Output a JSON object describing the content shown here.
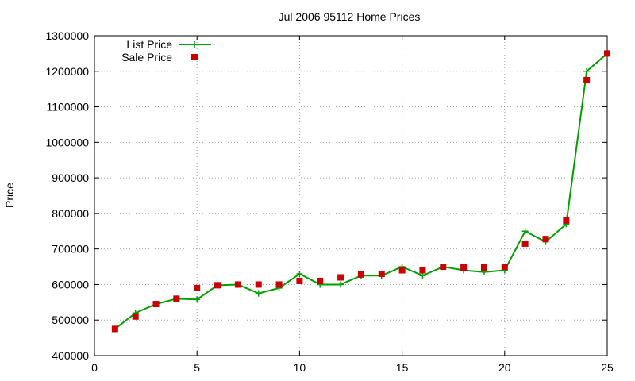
{
  "chart_data": {
    "type": "line",
    "title": "Jul 2006 95112 Home Prices",
    "xlabel": "",
    "ylabel": "Price",
    "xlim": [
      0,
      25
    ],
    "ylim": [
      400000,
      1300000
    ],
    "xticks": [
      0,
      5,
      10,
      15,
      20,
      25
    ],
    "yticks": [
      400000,
      500000,
      600000,
      700000,
      800000,
      900000,
      1000000,
      1100000,
      1200000,
      1300000
    ],
    "grid": true,
    "legend_position": "top-left",
    "series": [
      {
        "name": "List Price",
        "style": "line-with-plus-markers",
        "color": "#00a000",
        "x": [
          1,
          2,
          3,
          4,
          5,
          6,
          7,
          8,
          9,
          10,
          11,
          12,
          13,
          14,
          15,
          16,
          17,
          18,
          19,
          20,
          21,
          22,
          23,
          24,
          25
        ],
        "values": [
          475000,
          520000,
          545000,
          560000,
          558000,
          598000,
          600000,
          575000,
          590000,
          630000,
          600000,
          600000,
          625000,
          625000,
          650000,
          625000,
          650000,
          640000,
          635000,
          640000,
          750000,
          720000,
          770000,
          1200000,
          1250000
        ]
      },
      {
        "name": "Sale Price",
        "style": "square-markers",
        "color": "#cc0000",
        "x": [
          1,
          2,
          3,
          4,
          5,
          6,
          7,
          8,
          9,
          10,
          11,
          12,
          13,
          14,
          15,
          16,
          17,
          18,
          19,
          20,
          21,
          22,
          23,
          24,
          25
        ],
        "values": [
          475000,
          510000,
          545000,
          560000,
          590000,
          598000,
          600000,
          600000,
          600000,
          610000,
          610000,
          620000,
          628000,
          630000,
          640000,
          640000,
          650000,
          648000,
          648000,
          650000,
          715000,
          728000,
          780000,
          1175000,
          1250000
        ]
      }
    ]
  }
}
